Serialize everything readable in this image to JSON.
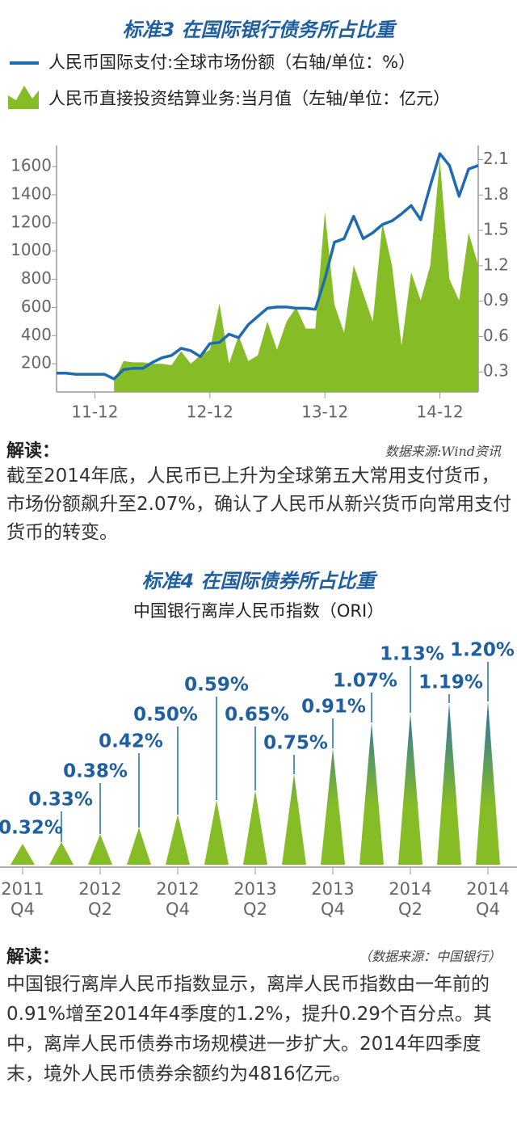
{
  "chart_data": [
    {
      "type": "combo",
      "title": "标准3 在国际银行债务所占比重",
      "categories": [
        null,
        null,
        null,
        null,
        "11-12",
        null,
        null,
        null,
        null,
        null,
        null,
        null,
        null,
        null,
        null,
        null,
        "12-12",
        null,
        null,
        null,
        null,
        null,
        null,
        null,
        null,
        null,
        null,
        null,
        "13-12",
        null,
        null,
        null,
        null,
        null,
        null,
        null,
        null,
        null,
        null,
        null,
        "14-12",
        null,
        null,
        null,
        null
      ],
      "series": [
        {
          "name": "人民币国际支付:全球市场份额（右轴/单位：%）",
          "type": "line",
          "axis": "y2",
          "color": "#1f6bb0",
          "values": [
            0.29,
            0.29,
            0.28,
            0.28,
            0.28,
            0.28,
            0.24,
            0.32,
            0.33,
            0.33,
            0.38,
            0.42,
            0.44,
            0.5,
            0.48,
            0.43,
            0.54,
            0.55,
            0.62,
            0.59,
            0.7,
            0.77,
            0.84,
            0.85,
            0.85,
            0.84,
            0.84,
            0.83,
            1.09,
            1.4,
            1.43,
            1.62,
            1.43,
            1.48,
            1.55,
            1.58,
            1.64,
            1.71,
            1.59,
            1.88,
            2.15,
            2.05,
            1.79,
            2.02,
            2.05
          ]
        },
        {
          "name": "人民币直接投资结算业务:当月值（左轴/单位：亿元）",
          "type": "area",
          "color": "#86bc25",
          "values": [
            null,
            null,
            null,
            null,
            null,
            null,
            80,
            220,
            210,
            210,
            200,
            200,
            190,
            290,
            200,
            260,
            300,
            630,
            200,
            400,
            220,
            260,
            500,
            300,
            500,
            600,
            450,
            450,
            1280,
            620,
            420,
            900,
            700,
            500,
            1200,
            900,
            330,
            850,
            650,
            900,
            1650,
            800,
            650,
            1130,
            900
          ]
        }
      ],
      "ylim": [
        0,
        1750
      ],
      "yticks": [
        200,
        400,
        600,
        800,
        1000,
        1200,
        1400,
        1600
      ],
      "y2lim": [
        0.13,
        2.22
      ],
      "y2ticks": [
        0.3,
        0.6,
        0.9,
        1.2,
        1.5,
        1.8,
        2.1
      ]
    },
    {
      "type": "bar",
      "title": "标准4 在国际债券所占比重",
      "subtitle": "中国银行离岸人民币指数（ORI）",
      "categories": [
        "2011\nQ4",
        null,
        "2012\nQ2",
        null,
        "2012\nQ4",
        null,
        "2013\nQ2",
        null,
        "2013\nQ4",
        null,
        "2014\nQ2",
        null,
        "2014\nQ4"
      ],
      "values": [
        0.32,
        0.33,
        0.38,
        0.42,
        0.5,
        0.59,
        0.65,
        0.75,
        0.91,
        1.07,
        1.13,
        1.19,
        1.2
      ],
      "value_labels": [
        "0.32%",
        "0.33%",
        "0.38%",
        "0.42%",
        "0.50%",
        "0.59%",
        "0.65%",
        "0.75%",
        "0.91%",
        "1.07%",
        "1.13%",
        "1.19%",
        "1.20%"
      ],
      "color": "#86bc25",
      "color_top": "#1f6bb0"
    }
  ],
  "notes": [
    {
      "heading": "解读：",
      "source": "数据来源:Wind资讯",
      "text": "截至2014年底，人民币已上升为全球第五大常用支付货币，市场份额飙升至2.07%，确认了人民币从新兴货币向常用支付货币的转变。"
    },
    {
      "heading": "解读：",
      "source": "（数据来源：中国银行）",
      "text": "中国银行离岸人民币指数显示，离岸人民币指数由一年前的0.91%增至2014年4季度的1.2%，提升0.29个百分点。其中，离岸人民币债券市场规模进一步扩大。2014年四季度末，境外人民币债券余额约为4816亿元。"
    }
  ]
}
